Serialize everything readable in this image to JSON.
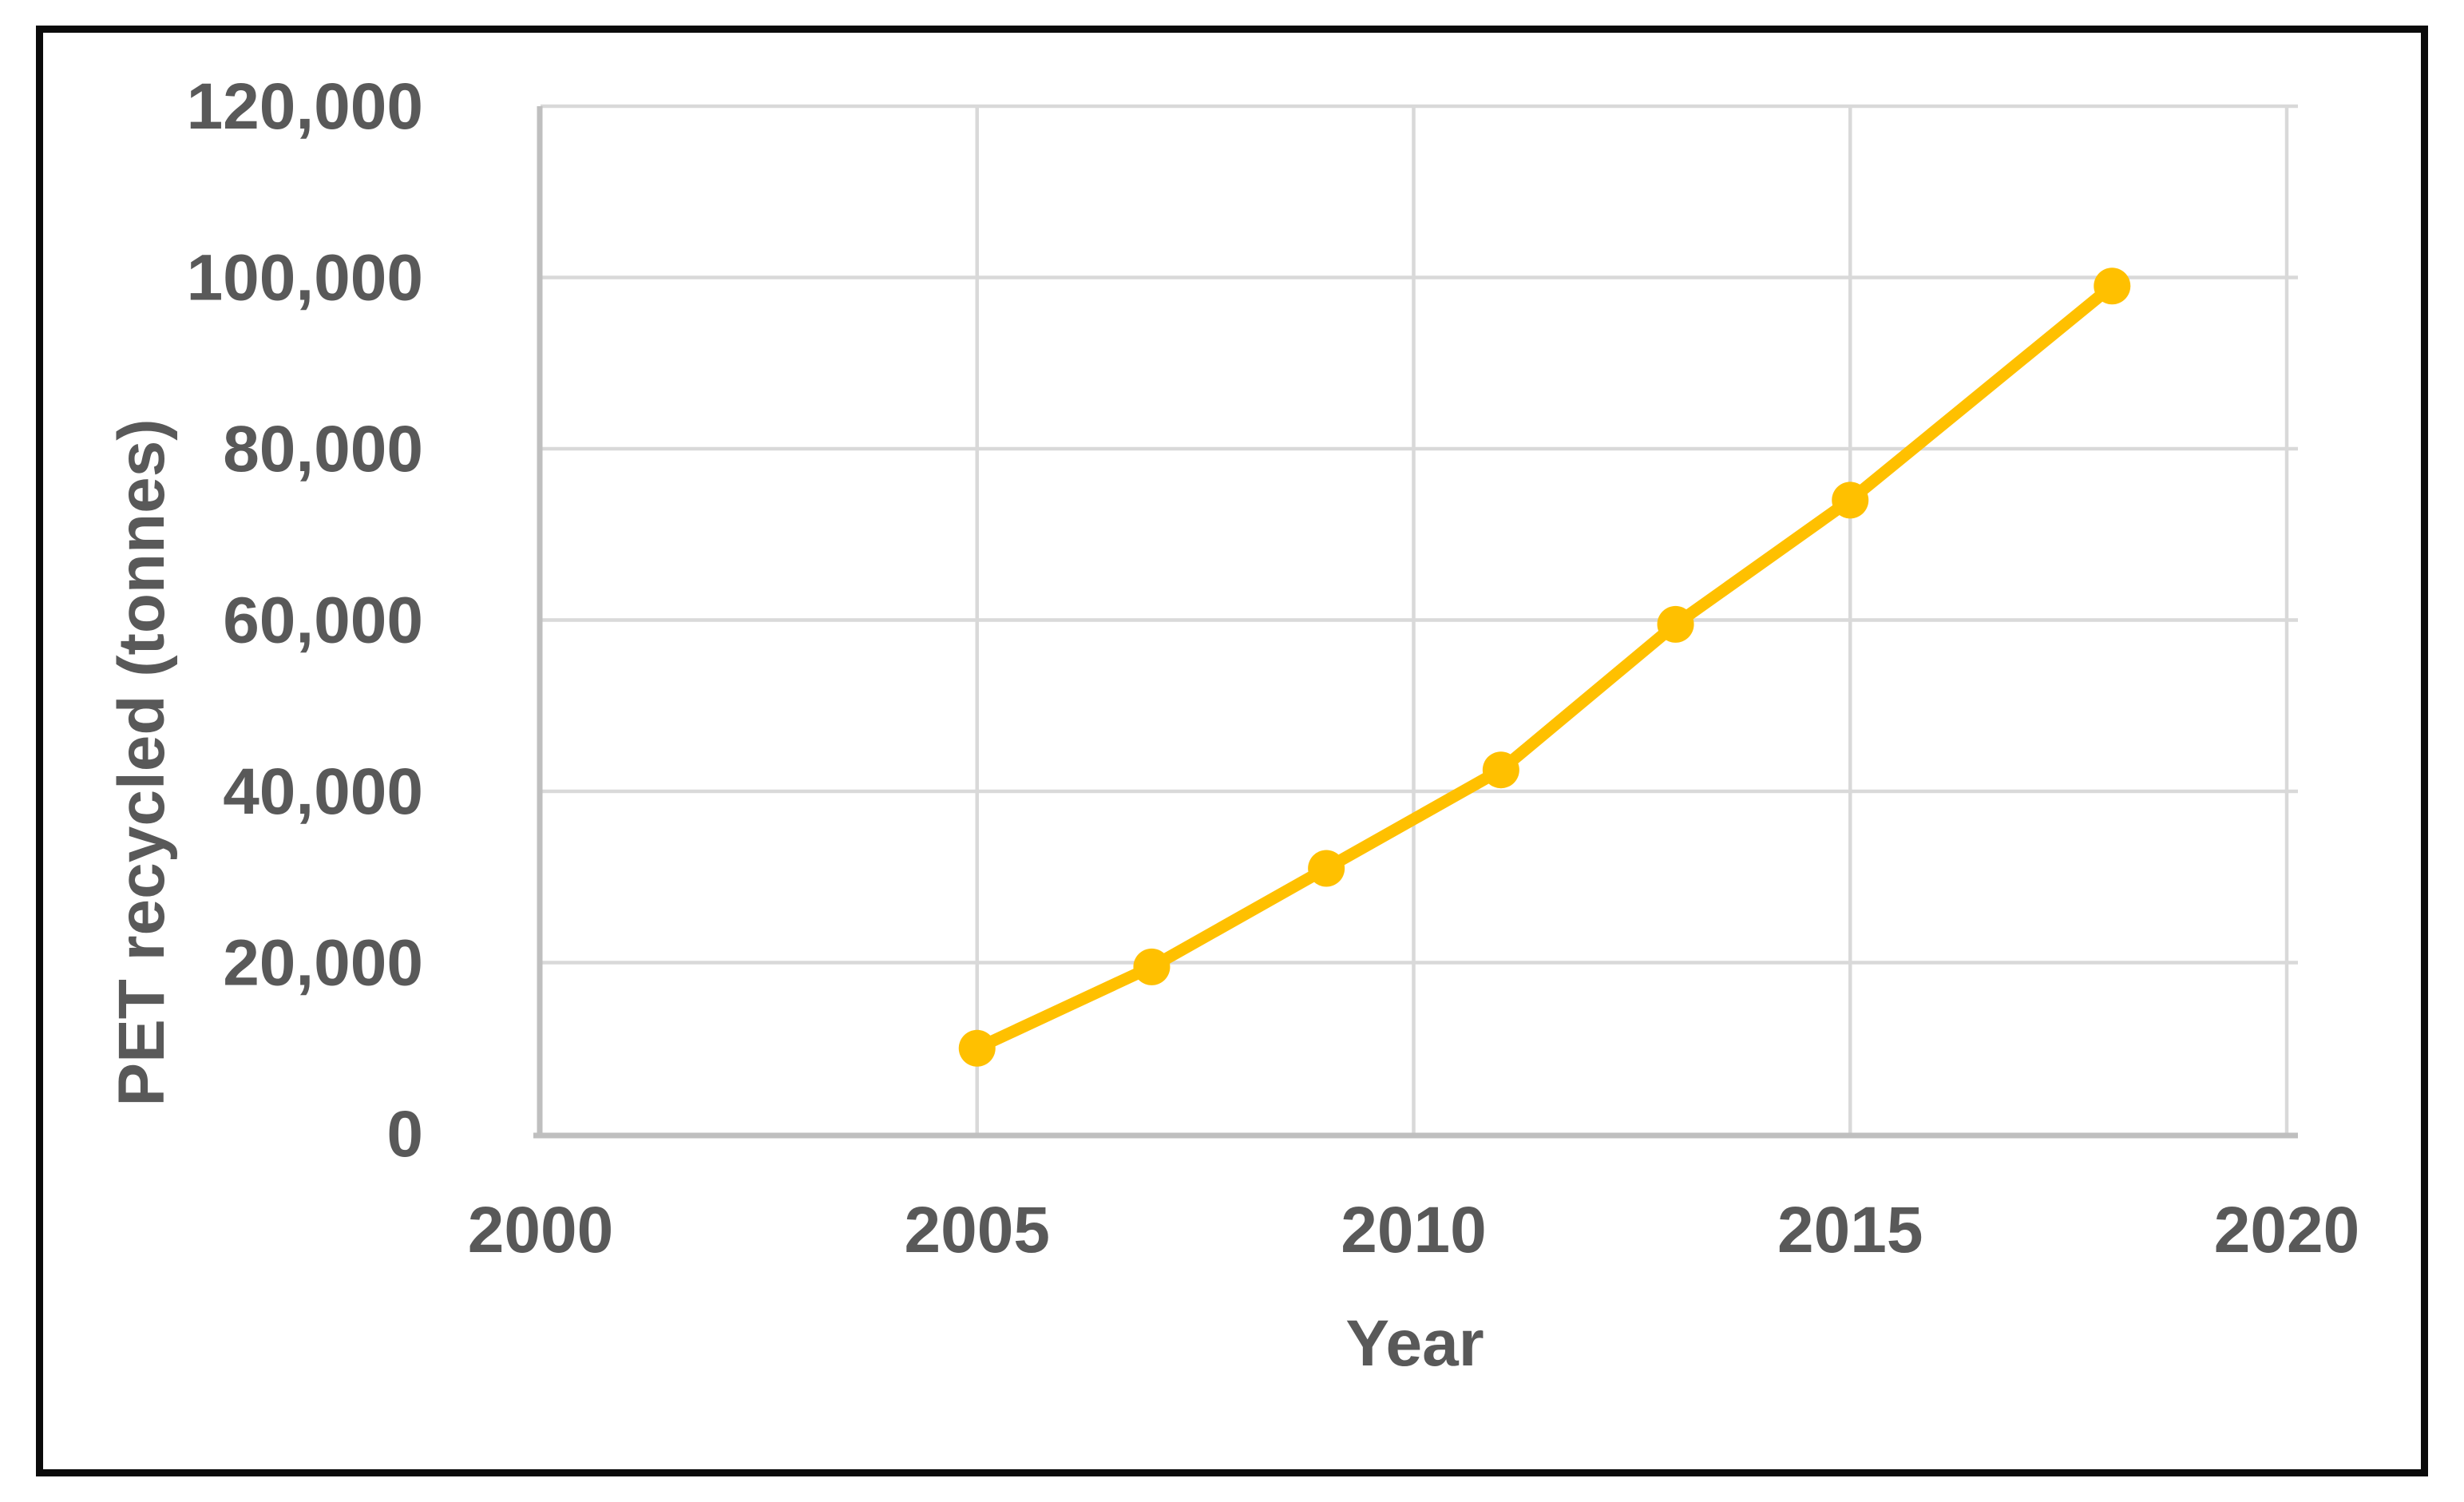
{
  "figure": {
    "background": "#FFFFFF",
    "frame_color": "#0B0B0B"
  },
  "chart_data": {
    "type": "line",
    "title": "",
    "xlabel": "Year",
    "ylabel": "PET recycled (tonnes)",
    "series": [
      {
        "name": "PET recycled (tonnes)",
        "x": [
          2005,
          2007,
          2009,
          2011,
          2013,
          2015,
          2018
        ],
        "y": [
          10000,
          19500,
          31000,
          42500,
          59500,
          74000,
          99000
        ],
        "color": "#FFC000",
        "marker": "circle"
      }
    ],
    "xlim": [
      2000,
      2020
    ],
    "ylim": [
      0,
      120000
    ],
    "x_ticks": [
      2000,
      2005,
      2010,
      2015,
      2020
    ],
    "x_tick_labels": [
      "2000",
      "2005",
      "2010",
      "2015",
      "2020"
    ],
    "y_ticks": [
      0,
      20000,
      40000,
      60000,
      80000,
      100000,
      120000
    ],
    "y_tick_labels": [
      "0",
      "20,000",
      "40,000",
      "60,000",
      "80,000",
      "100,000",
      "120,000"
    ],
    "grid": true,
    "legend_position": "none",
    "gridline_color": "#D9D9D9",
    "axis_line_color": "#BFBFBF",
    "tick_label_color": "#595959",
    "axis_title_color": "#595959"
  }
}
